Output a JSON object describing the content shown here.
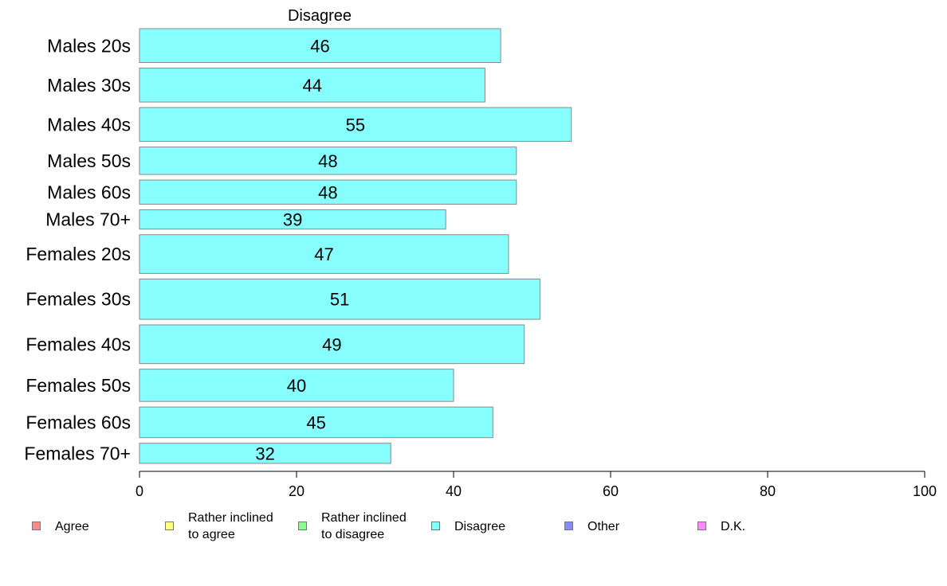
{
  "chart_data": {
    "type": "bar",
    "orientation": "horizontal",
    "title": "Disagree",
    "categories": [
      "Males 20s",
      "Males 30s",
      "Males 40s",
      "Males 50s",
      "Males 60s",
      "Males 70+",
      "Females 20s",
      "Females 30s",
      "Females 40s",
      "Females 50s",
      "Females 60s",
      "Females 70+"
    ],
    "series": [
      {
        "name": "Disagree",
        "values": [
          46,
          44,
          55,
          48,
          48,
          39,
          47,
          51,
          49,
          40,
          45,
          32
        ]
      }
    ],
    "bar_relative_widths": [
      42,
      42,
      42,
      34,
      30,
      24,
      48,
      50,
      48,
      40,
      38,
      25
    ],
    "xlim": [
      0,
      100
    ],
    "xticks": [
      "0",
      "20",
      "40",
      "60",
      "80",
      "100"
    ],
    "xlabel": "",
    "ylabel": "",
    "grid": false,
    "bar_color": "#88ffff",
    "bar_border_color": "#888888"
  },
  "legend": {
    "placement": "bottom",
    "items": [
      {
        "label": "Agree",
        "color": "#ff8888"
      },
      {
        "label": "Rather inclined\nto agree",
        "color": "#ffff88"
      },
      {
        "label": "Rather inclined\nto disagree",
        "color": "#88ff88"
      },
      {
        "label": "Disagree",
        "color": "#88ffff"
      },
      {
        "label": "Other",
        "color": "#8888ff"
      },
      {
        "label": "D.K.",
        "color": "#ff88ff"
      }
    ]
  }
}
